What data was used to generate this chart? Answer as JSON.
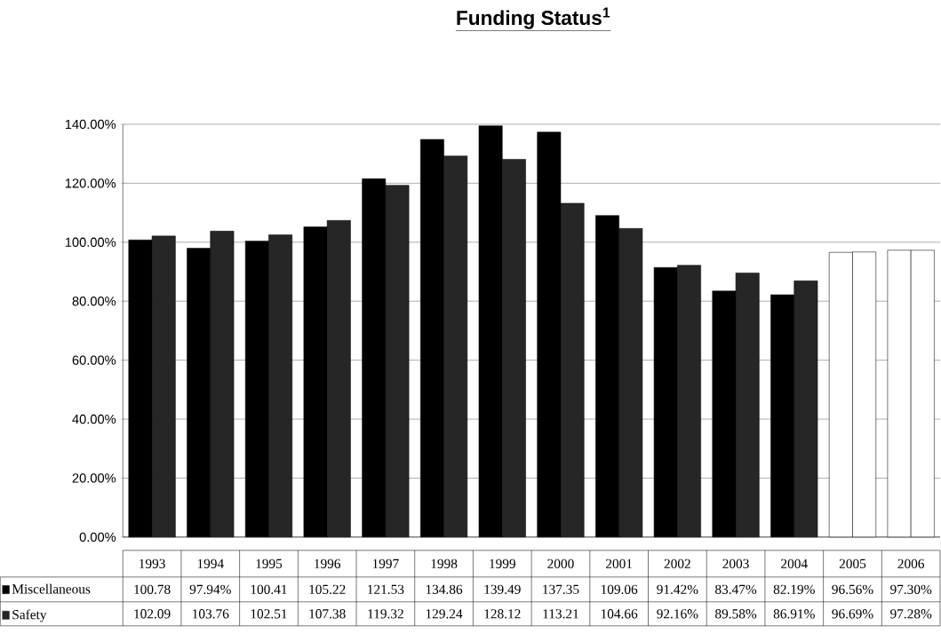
{
  "chart_data": {
    "type": "bar",
    "title": "Funding Status$^{1}$",
    "categories": [
      "1993",
      "1994",
      "1995",
      "1996",
      "1997",
      "1998",
      "1999",
      "2000",
      "2001",
      "2002",
      "2003",
      "2004",
      "2005",
      "2006"
    ],
    "series": [
      {
        "name": "Miscellaneous",
        "color": "#000000",
        "colors": [
          "#000000",
          "#000000",
          "#000000",
          "#000000",
          "#000000",
          "#000000",
          "#000000",
          "#000000",
          "#000000",
          "#000000",
          "#000000",
          "#000000",
          "#ffffff",
          "#ffffff"
        ],
        "values": [
          100.78,
          97.94,
          100.41,
          105.22,
          121.53,
          134.86,
          139.49,
          137.35,
          109.06,
          91.42,
          83.47,
          82.19,
          96.56,
          97.3
        ],
        "value_labels": [
          "100.78",
          "97.94%",
          "100.41",
          "105.22",
          "121.53",
          "134.86",
          "139.49",
          "137.35",
          "109.06",
          "91.42%",
          "83.47%",
          "82.19%",
          "96.56%",
          "97.30%"
        ]
      },
      {
        "name": "Safety",
        "color": "#262626",
        "colors": [
          "#262626",
          "#262626",
          "#262626",
          "#262626",
          "#262626",
          "#262626",
          "#262626",
          "#262626",
          "#262626",
          "#262626",
          "#262626",
          "#262626",
          "#ffffff",
          "#ffffff"
        ],
        "values": [
          102.09,
          103.76,
          102.51,
          107.38,
          119.32,
          129.24,
          128.12,
          113.21,
          104.66,
          92.16,
          89.58,
          86.91,
          96.69,
          97.28
        ],
        "value_labels": [
          "102.09",
          "103.76",
          "102.51",
          "107.38",
          "119.32",
          "129.24",
          "128.12",
          "113.21",
          "104.66",
          "92.16%",
          "89.58%",
          "86.91%",
          "96.69%",
          "97.28%"
        ]
      }
    ],
    "ylim": [
      0,
      140
    ],
    "yticks": [
      {
        "value": 0,
        "label": "0.00%"
      },
      {
        "value": 20,
        "label": "20.00%"
      },
      {
        "value": 40,
        "label": "40.00%"
      },
      {
        "value": 60,
        "label": "60.00%"
      },
      {
        "value": 80,
        "label": "80.00%"
      },
      {
        "value": 100,
        "label": "100.00%"
      },
      {
        "value": 120,
        "label": "120.00%"
      },
      {
        "value": 140,
        "label": "140.00%"
      }
    ],
    "grid": "y",
    "legend": "bottom"
  }
}
